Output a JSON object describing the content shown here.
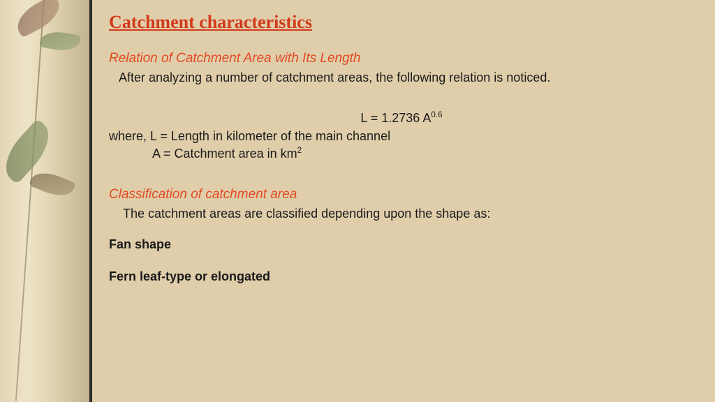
{
  "colors": {
    "background": "#e0ceab",
    "sidebar_border": "#2a2a2a",
    "title_red": "#d23a1a",
    "subhead_red": "#e24a22",
    "body_text": "#1a1a1a"
  },
  "typography": {
    "title_family": "Georgia serif",
    "title_size_pt": 20,
    "title_weight": 700,
    "body_family": "Century Gothic sans-serif",
    "body_size_pt": 14,
    "subhead_italic": true
  },
  "title": "Catchment characteristics",
  "section1": {
    "heading": "Relation of Catchment Area with Its Length",
    "intro": "After analyzing a number of catchment areas, the following relation is noticed.",
    "equation_prefix": "L = 1.2736 A",
    "equation_exponent": "0.6",
    "where_label": "where, L = Length in kilometer of the main channel",
    "a_prefix": "A = Catchment area in km",
    "a_exponent": "2"
  },
  "section2": {
    "heading": "Classification of catchment area",
    "intro": "The catchment areas are classified depending upon the shape as:",
    "item1": "Fan shape",
    "item2": "Fern leaf-type or elongated"
  }
}
